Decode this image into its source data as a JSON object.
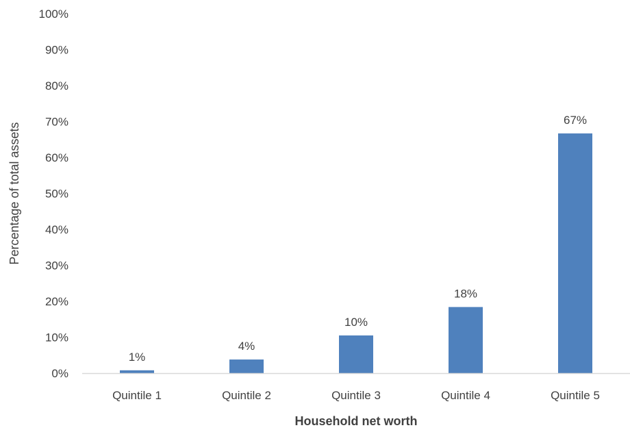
{
  "chart_data": {
    "type": "bar",
    "categories": [
      "Quintile 1",
      "Quintile 2",
      "Quintile 3",
      "Quintile 4",
      "Quintile 5"
    ],
    "values": [
      1,
      4,
      10,
      18,
      67
    ],
    "data_labels": [
      "1%",
      "4%",
      "10%",
      "18%",
      "67%"
    ],
    "bar_heights": [
      0.8,
      3.8,
      10.5,
      18.4,
      66.7
    ],
    "title": "",
    "xlabel": "Household net worth",
    "ylabel": "Percentage of total assets",
    "ylim": [
      0,
      100
    ],
    "yticks": [
      0,
      10,
      20,
      30,
      40,
      50,
      60,
      70,
      80,
      90,
      100
    ],
    "ytick_labels": [
      "0%",
      "10%",
      "20%",
      "30%",
      "40%",
      "50%",
      "60%",
      "70%",
      "80%",
      "90%",
      "100%"
    ],
    "grid": false,
    "legend": "none",
    "bar_color": "#4f81bd",
    "axis_color": "#d9d9d9",
    "text_color": "#404040"
  }
}
